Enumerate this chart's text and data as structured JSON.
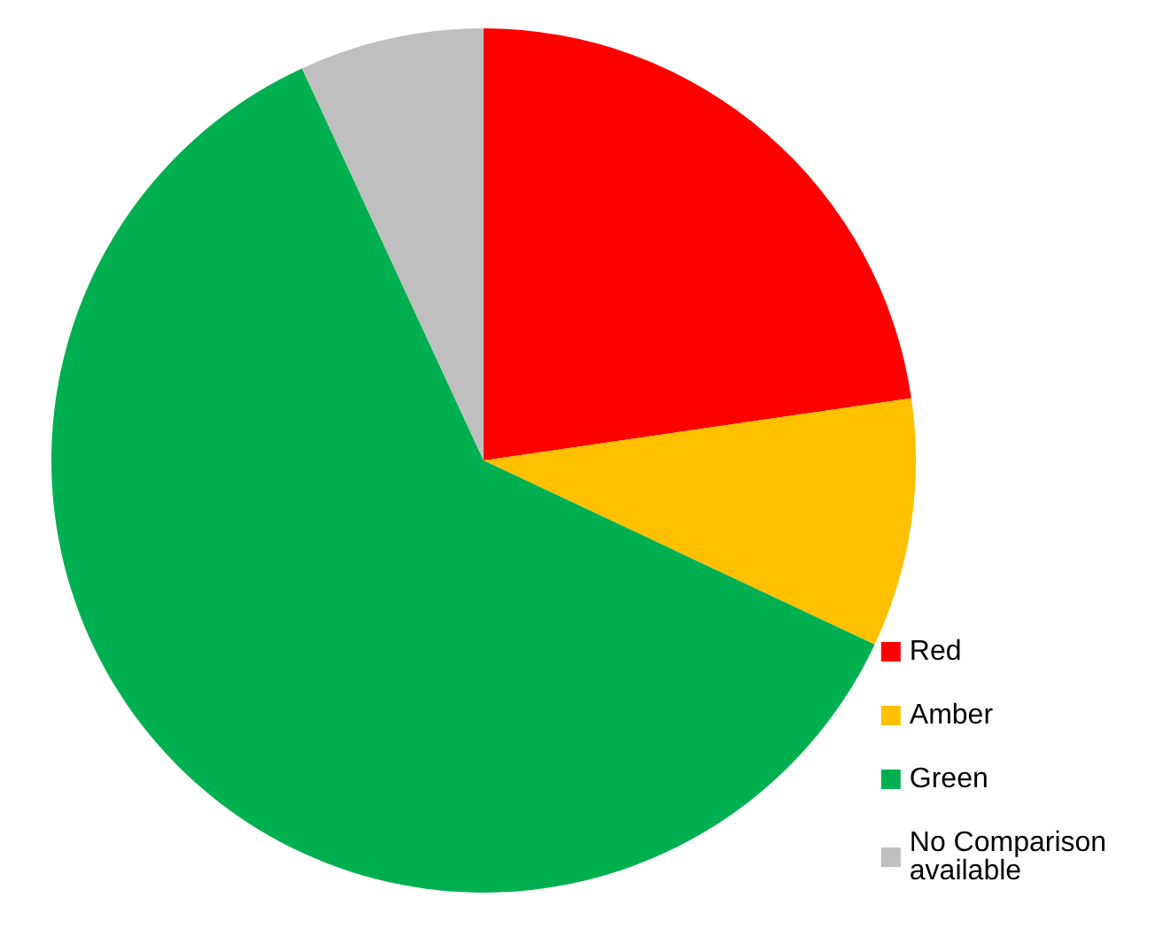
{
  "chart_data": {
    "type": "pie",
    "categories": [
      "Red",
      "Amber",
      "Green",
      "No Comparison available"
    ],
    "values": [
      22.7,
      9.3,
      61.1,
      6.9
    ],
    "colors": [
      "#ff0000",
      "#ffc000",
      "#00b050",
      "#bfbfbf"
    ],
    "legend": "bottom right"
  }
}
